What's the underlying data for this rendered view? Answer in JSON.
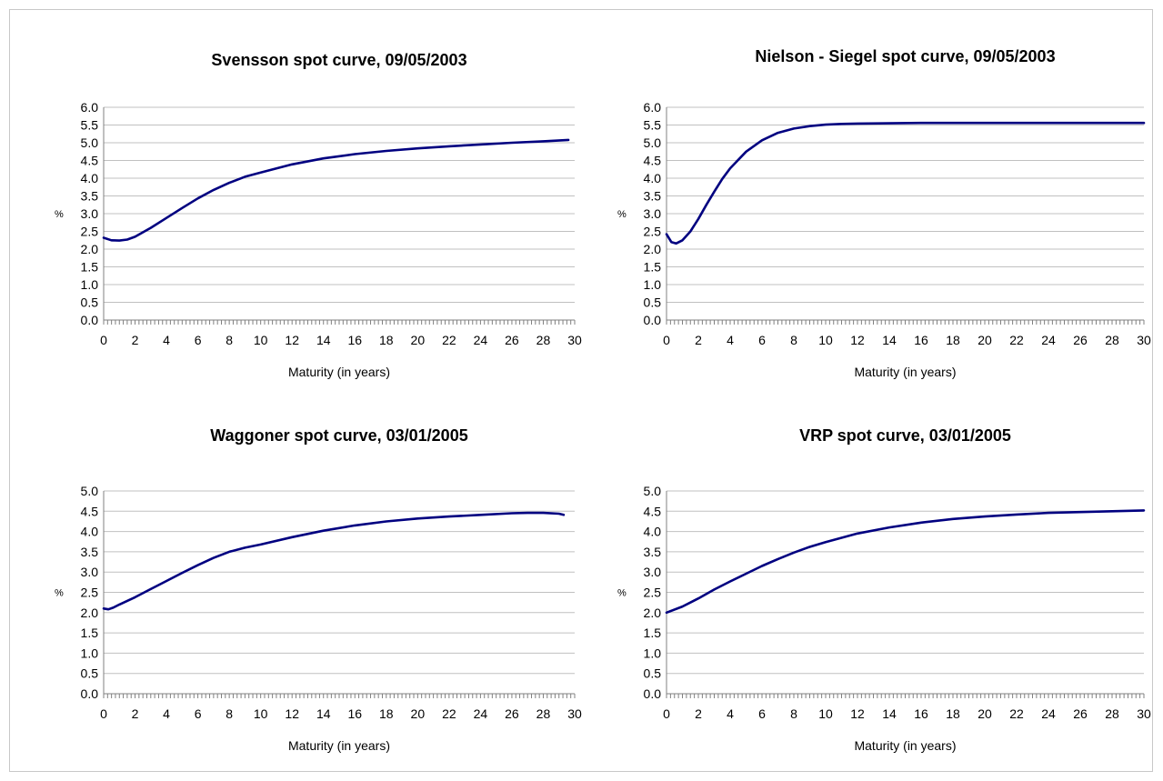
{
  "chart_data": [
    {
      "type": "line",
      "title": "Svensson spot curve, 09/05/2003",
      "xlabel": "Maturity (in years)",
      "ylabel": "%",
      "xlim": [
        0,
        30
      ],
      "ylim": [
        0,
        6
      ],
      "ystep": 0.5,
      "xticks": [
        0,
        2,
        4,
        6,
        8,
        10,
        12,
        14,
        16,
        18,
        20,
        22,
        24,
        26,
        28,
        30
      ],
      "yticks": [
        "0.0",
        "0.5",
        "1.0",
        "1.5",
        "2.0",
        "2.5",
        "3.0",
        "3.5",
        "4.0",
        "4.5",
        "5.0",
        "5.5",
        "6.0"
      ],
      "grid": true,
      "series": [
        {
          "color": "#000080",
          "x": [
            0.0,
            0.5,
            1.0,
            1.5,
            2.0,
            3.0,
            4.0,
            5.0,
            6.0,
            7.0,
            8.0,
            9.0,
            10.0,
            12.0,
            14.0,
            16.0,
            18.0,
            20.0,
            22.0,
            24.0,
            26.0,
            28.0,
            29.6
          ],
          "y": [
            2.32,
            2.25,
            2.24,
            2.27,
            2.35,
            2.6,
            2.88,
            3.16,
            3.43,
            3.67,
            3.87,
            4.04,
            4.16,
            4.39,
            4.56,
            4.68,
            4.77,
            4.84,
            4.9,
            4.95,
            5.0,
            5.04,
            5.08
          ]
        }
      ]
    },
    {
      "type": "line",
      "title": "Nielson - Siegel spot curve, 09/05/2003",
      "xlabel": "Maturity (in years)",
      "ylabel": "%",
      "xlim": [
        0,
        30
      ],
      "ylim": [
        0,
        6
      ],
      "ystep": 0.5,
      "xticks": [
        0,
        2,
        4,
        6,
        8,
        10,
        12,
        14,
        16,
        18,
        20,
        22,
        24,
        26,
        28,
        30
      ],
      "yticks": [
        "0.0",
        "0.5",
        "1.0",
        "1.5",
        "2.0",
        "2.5",
        "3.0",
        "3.5",
        "4.0",
        "4.5",
        "5.0",
        "5.5",
        "6.0"
      ],
      "grid": true,
      "series": [
        {
          "color": "#000080",
          "x": [
            0.0,
            0.3,
            0.6,
            1.0,
            1.5,
            2.0,
            2.5,
            3.0,
            3.5,
            4.0,
            5.0,
            6.0,
            7.0,
            8.0,
            9.0,
            10.0,
            11.0,
            12.0,
            14.0,
            16.0,
            20.0,
            25.0,
            30.0
          ],
          "y": [
            2.42,
            2.2,
            2.16,
            2.25,
            2.5,
            2.85,
            3.25,
            3.62,
            3.98,
            4.28,
            4.75,
            5.07,
            5.28,
            5.4,
            5.47,
            5.51,
            5.53,
            5.54,
            5.55,
            5.56,
            5.56,
            5.56,
            5.56
          ]
        }
      ]
    },
    {
      "type": "line",
      "title": "Waggoner spot curve, 03/01/2005",
      "xlabel": "Maturity (in years)",
      "ylabel": "%",
      "xlim": [
        0,
        30
      ],
      "ylim": [
        0,
        5
      ],
      "ystep": 0.5,
      "xticks": [
        0,
        2,
        4,
        6,
        8,
        10,
        12,
        14,
        16,
        18,
        20,
        22,
        24,
        26,
        28,
        30
      ],
      "yticks": [
        "0.0",
        "0.5",
        "1.0",
        "1.5",
        "2.0",
        "2.5",
        "3.0",
        "3.5",
        "4.0",
        "4.5",
        "5.0"
      ],
      "grid": true,
      "series": [
        {
          "color": "#000080",
          "x": [
            0.0,
            0.3,
            0.6,
            1.0,
            2.0,
            3.0,
            4.0,
            5.0,
            6.0,
            7.0,
            8.0,
            9.0,
            10.0,
            12.0,
            14.0,
            16.0,
            18.0,
            20.0,
            22.0,
            24.0,
            26.0,
            27.0,
            28.0,
            29.0,
            29.3
          ],
          "y": [
            2.1,
            2.08,
            2.12,
            2.2,
            2.38,
            2.58,
            2.78,
            2.98,
            3.17,
            3.35,
            3.5,
            3.6,
            3.68,
            3.86,
            4.02,
            4.15,
            4.25,
            4.32,
            4.37,
            4.41,
            4.45,
            4.46,
            4.46,
            4.44,
            4.41
          ]
        }
      ]
    },
    {
      "type": "line",
      "title": "VRP spot curve, 03/01/2005",
      "xlabel": "Maturity (in years)",
      "ylabel": "%",
      "xlim": [
        0,
        30
      ],
      "ylim": [
        0,
        5
      ],
      "ystep": 0.5,
      "xticks": [
        0,
        2,
        4,
        6,
        8,
        10,
        12,
        14,
        16,
        18,
        20,
        22,
        24,
        26,
        28,
        30
      ],
      "yticks": [
        "0.0",
        "0.5",
        "1.0",
        "1.5",
        "2.0",
        "2.5",
        "3.0",
        "3.5",
        "4.0",
        "4.5",
        "5.0"
      ],
      "grid": true,
      "series": [
        {
          "color": "#000080",
          "x": [
            0.0,
            1.0,
            2.0,
            3.0,
            4.0,
            5.0,
            6.0,
            7.0,
            8.0,
            9.0,
            10.0,
            12.0,
            14.0,
            16.0,
            18.0,
            20.0,
            22.0,
            24.0,
            26.0,
            28.0,
            30.0
          ],
          "y": [
            2.0,
            2.15,
            2.35,
            2.57,
            2.77,
            2.96,
            3.15,
            3.32,
            3.48,
            3.62,
            3.74,
            3.95,
            4.1,
            4.22,
            4.31,
            4.37,
            4.42,
            4.46,
            4.48,
            4.5,
            4.52
          ]
        }
      ]
    }
  ]
}
